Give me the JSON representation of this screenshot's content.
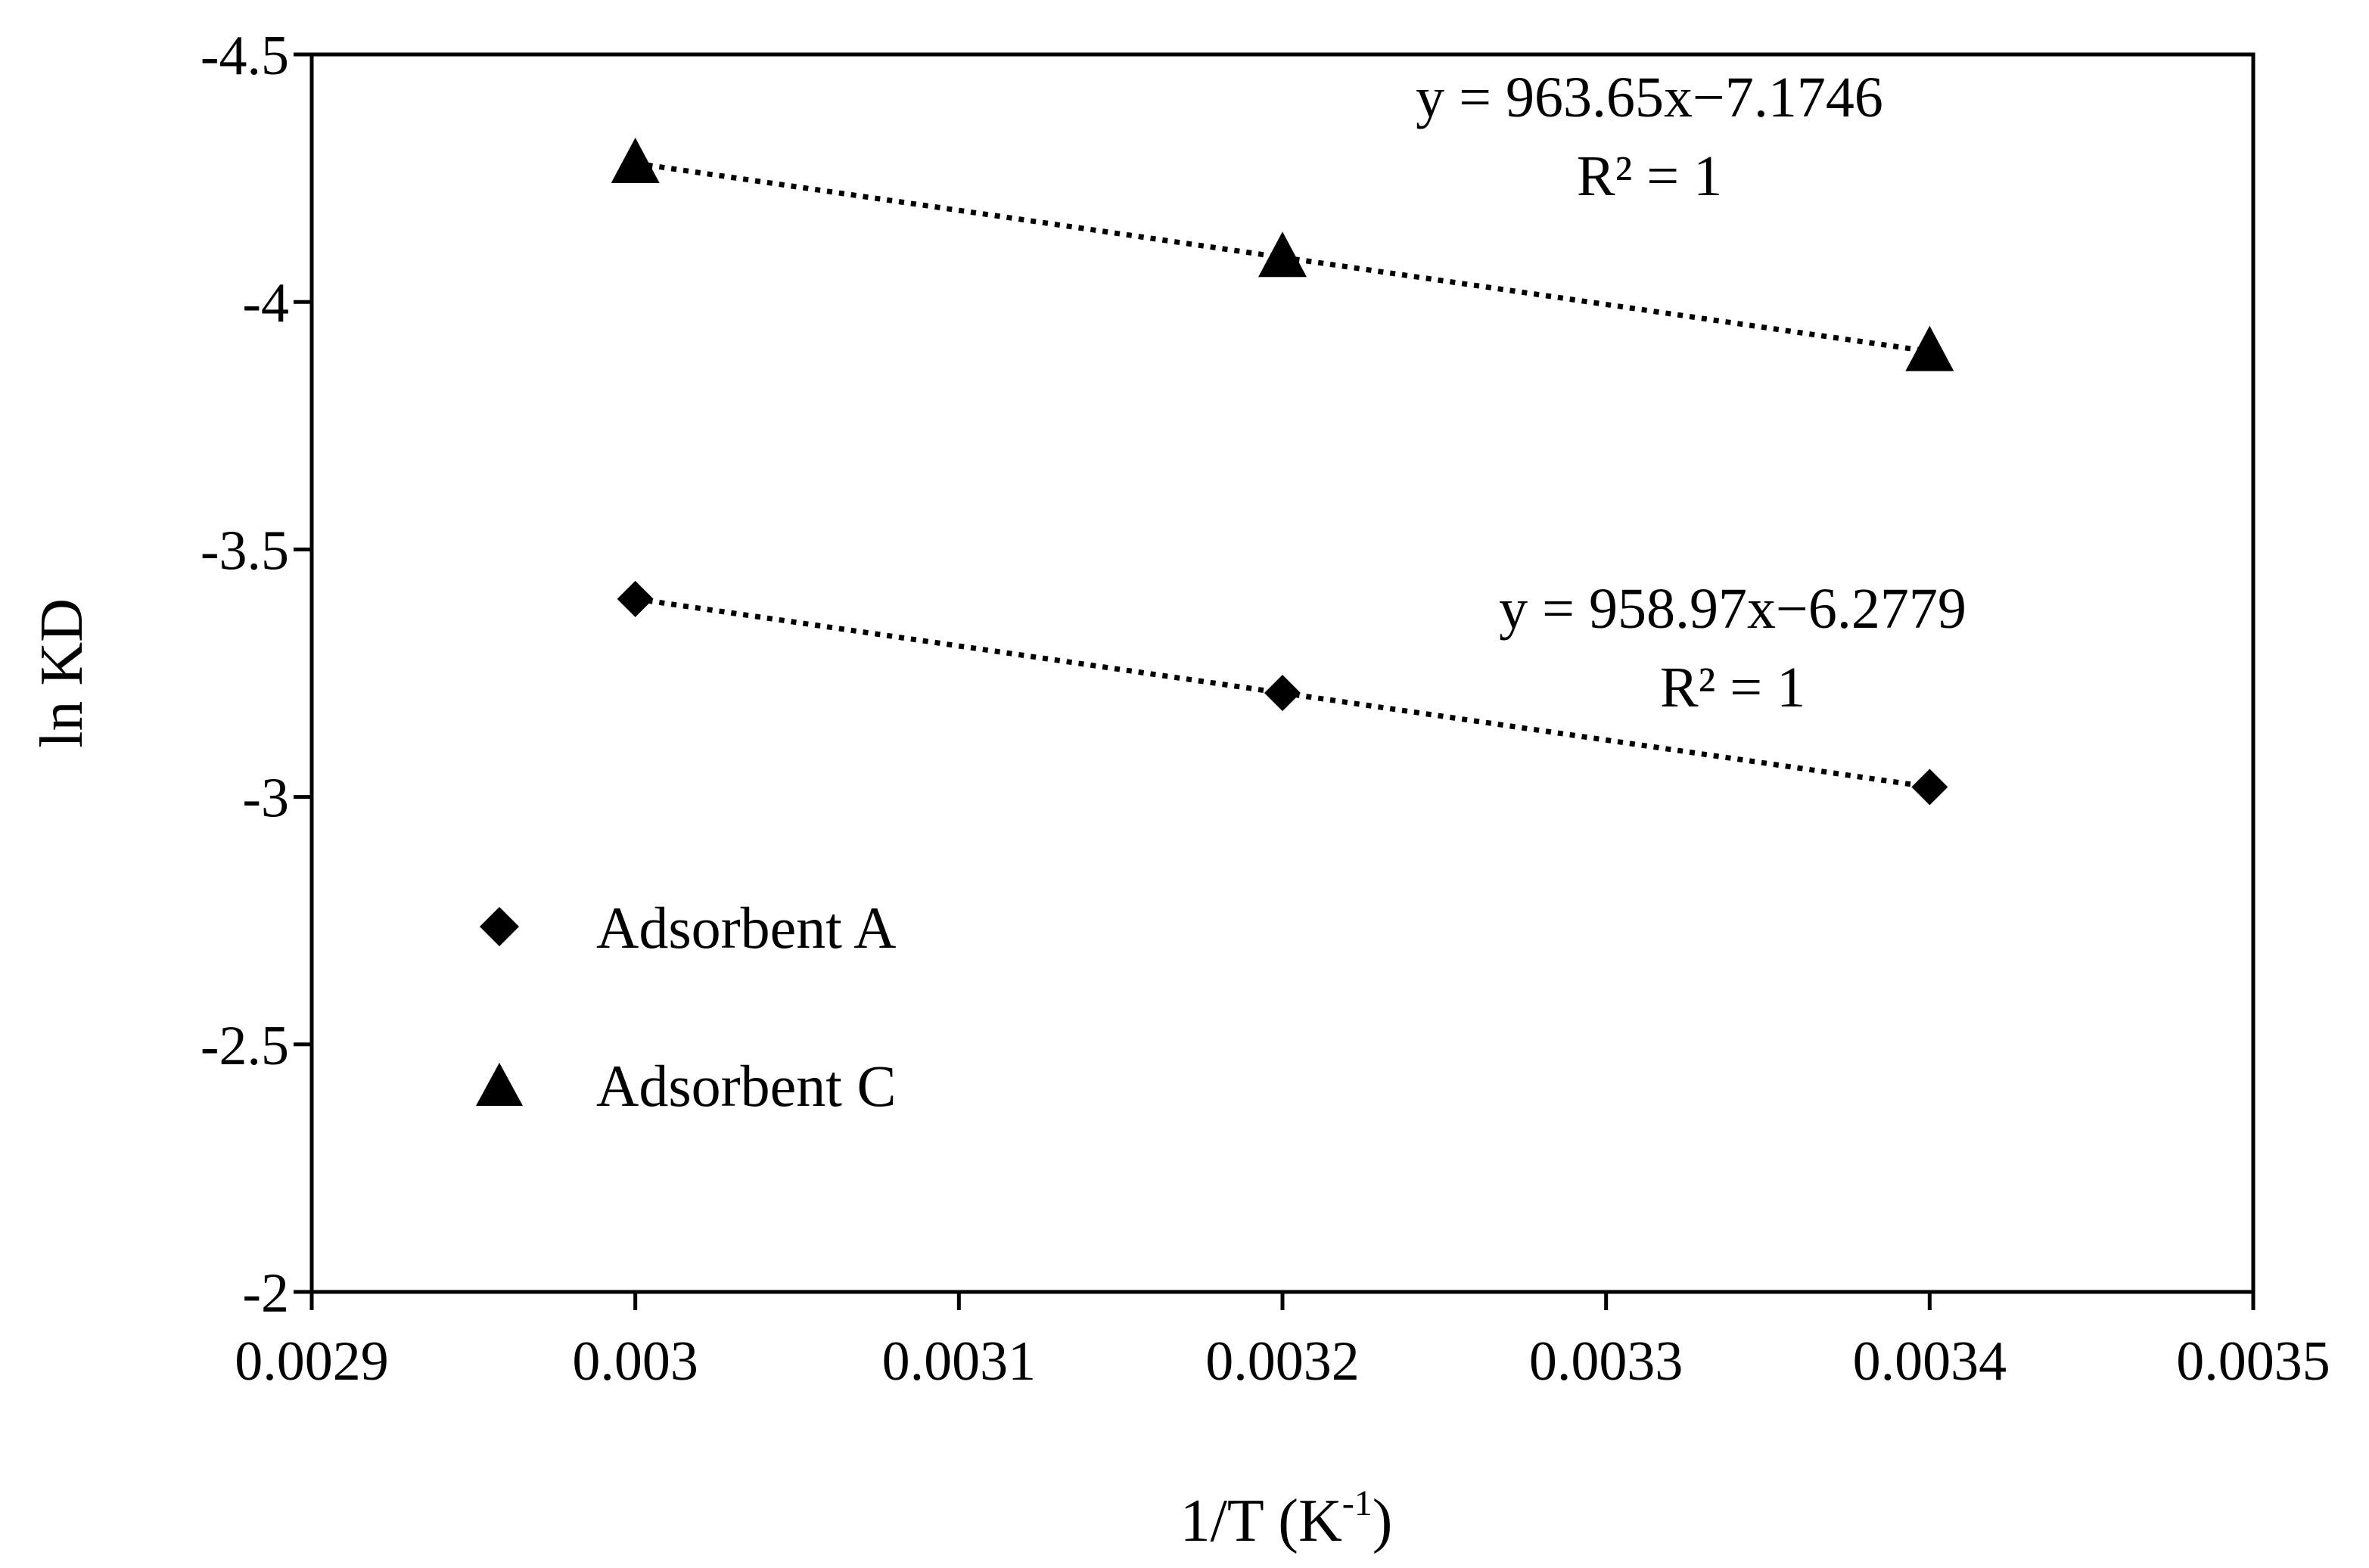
{
  "chart_data": {
    "type": "scatter",
    "title": "",
    "xlabel": "1/T (K",
    "xlabel_sup": "-1",
    "xlabel_close": ")",
    "ylabel": "ln KD",
    "xlim": [
      0.0029,
      0.0035
    ],
    "ylim": [
      -2,
      -4.5
    ],
    "x_ticks": [
      "0.0029",
      "0.003",
      "0.0031",
      "0.0032",
      "0.0033",
      "0.0034",
      "0.0035"
    ],
    "x_tick_values": [
      0.0029,
      0.003,
      0.0031,
      0.0032,
      0.0033,
      0.0034,
      0.0035
    ],
    "y_ticks": [
      "-2",
      "-2.5",
      "-3",
      "-3.5",
      "-4",
      "-4.5"
    ],
    "y_tick_values": [
      -2,
      -2.5,
      -3,
      -3.5,
      -4,
      -4.5
    ],
    "grid": false,
    "legend_position": "left",
    "series": [
      {
        "name": "Adsorbent A",
        "marker": "diamond",
        "x": [
          0.003,
          0.0032,
          0.0034
        ],
        "y": [
          -3.4,
          -3.21,
          -3.02
        ],
        "trendline": "dotted",
        "equation": "y = 958.97x−6.2779",
        "r2": "R² = 1"
      },
      {
        "name": "Adsorbent C",
        "marker": "triangle",
        "x": [
          0.003,
          0.0032,
          0.0034
        ],
        "y": [
          -4.28,
          -4.09,
          -3.9
        ],
        "trendline": "dotted",
        "equation": "y = 963.65x−7.1746",
        "r2": "R² = 1"
      }
    ],
    "colors": {
      "marker": "#000000",
      "axis": "#000000",
      "background": "#ffffff"
    }
  }
}
